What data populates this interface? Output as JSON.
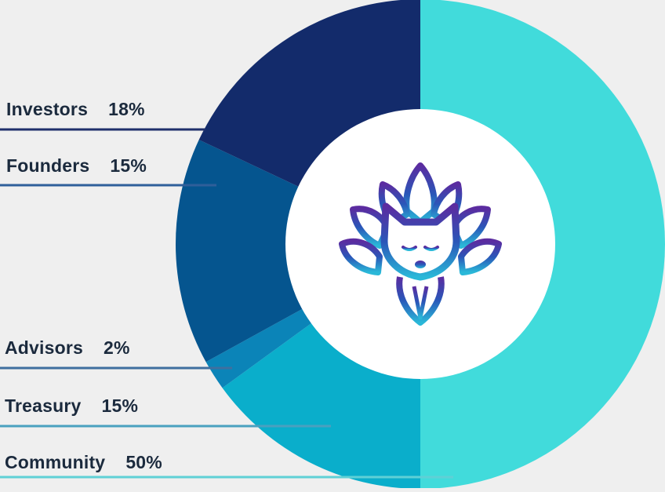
{
  "chart_data": {
    "type": "pie",
    "variant": "donut",
    "title": "",
    "slices": [
      {
        "label": "Community",
        "value": 50,
        "display": "50%",
        "color": "#41dbdb"
      },
      {
        "label": "Treasury",
        "value": 15,
        "display": "15%",
        "color": "#0aaecb"
      },
      {
        "label": "Advisors",
        "value": 2,
        "display": "2%",
        "color": "#0b84b8"
      },
      {
        "label": "Founders",
        "value": 15,
        "display": "15%",
        "color": "#05558f"
      },
      {
        "label": "Investors",
        "value": 18,
        "display": "18%",
        "color": "#132b6b"
      }
    ],
    "start": "top, clockwise",
    "center_logo": "fox-lotus-logo"
  },
  "colors": {
    "background": "#efefef",
    "center_fill": "#ffffff",
    "label_text": "#1b2a3d",
    "logo_gradient_top": "#5b2ca0",
    "logo_gradient_mid": "#2a56b8",
    "logo_gradient_bottom": "#2ab8d8"
  }
}
